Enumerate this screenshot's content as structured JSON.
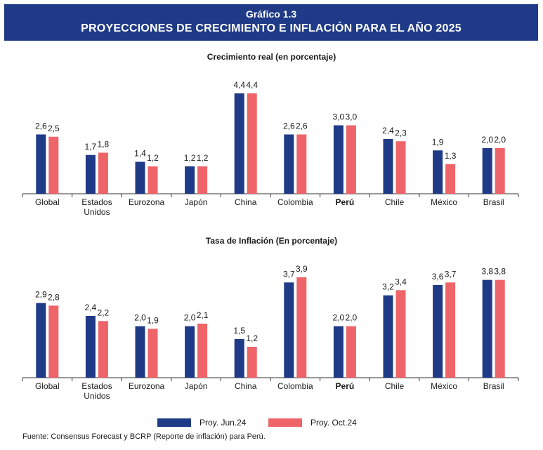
{
  "header": {
    "label": "Gráfico 1.3",
    "title": "PROYECCIONES DE CRECIMIENTO E INFLACIÓN PARA EL AÑO 2025"
  },
  "colors": {
    "series_1": "#1f3a86",
    "series_2": "#ee6469",
    "axis": "#333333"
  },
  "legend": [
    {
      "name": "Proy. Jun.24",
      "color": "#1f3a86"
    },
    {
      "name": "Proy. Oct.24",
      "color": "#ee6469"
    }
  ],
  "source": "Fuente: Consensus Forecast y BCRP (Reporte de inflación) para Perú.",
  "chart_data": [
    {
      "type": "bar",
      "title": "Crecimiento real (en porcentaje)",
      "categories": [
        "Global",
        "Estados Unidos",
        "Eurozona",
        "Japón",
        "China",
        "Colombia",
        "Perú",
        "Chile",
        "México",
        "Brasil"
      ],
      "bold_category": "Perú",
      "series": [
        {
          "name": "Proy. Jun.24",
          "values": [
            2.6,
            1.7,
            1.4,
            1.2,
            4.4,
            2.6,
            3.0,
            2.4,
            1.9,
            2.0
          ],
          "labels": [
            "2,6",
            "1,7",
            "1,4",
            "1,2",
            "4,4",
            "2,6",
            "3,0",
            "2,4",
            "1,9",
            "2,0"
          ]
        },
        {
          "name": "Proy. Oct.24",
          "values": [
            2.5,
            1.8,
            1.2,
            1.2,
            4.4,
            2.6,
            3.0,
            2.3,
            1.3,
            2.0
          ],
          "labels": [
            "2,5",
            "1,8",
            "1,2",
            "1,2",
            "4,4",
            "2,6",
            "3,0",
            "2,3",
            "1,3",
            "2,0"
          ]
        }
      ],
      "ylim": [
        0,
        4.4
      ],
      "grid": false
    },
    {
      "type": "bar",
      "title": "Tasa de Inflación (En porcentaje)",
      "categories": [
        "Global",
        "Estados Unidos",
        "Eurozona",
        "Japón",
        "China",
        "Colombia",
        "Perú",
        "Chile",
        "México",
        "Brasil"
      ],
      "bold_category": "Perú",
      "series": [
        {
          "name": "Proy. Jun.24",
          "values": [
            2.9,
            2.4,
            2.0,
            2.0,
            1.5,
            3.7,
            2.0,
            3.2,
            3.6,
            3.8
          ],
          "labels": [
            "2,9",
            "2,4",
            "2,0",
            "2,0",
            "1,5",
            "3,7",
            "2,0",
            "3,2",
            "3,6",
            "3,8"
          ]
        },
        {
          "name": "Proy. Oct.24",
          "values": [
            2.8,
            2.2,
            1.9,
            2.1,
            1.2,
            3.9,
            2.0,
            3.4,
            3.7,
            3.8
          ],
          "labels": [
            "2,8",
            "2,2",
            "1,9",
            "2,1",
            "1,2",
            "3,9",
            "2,0",
            "3,4",
            "3,7",
            "3,8"
          ]
        }
      ],
      "ylim": [
        0,
        3.9
      ],
      "grid": false
    }
  ]
}
